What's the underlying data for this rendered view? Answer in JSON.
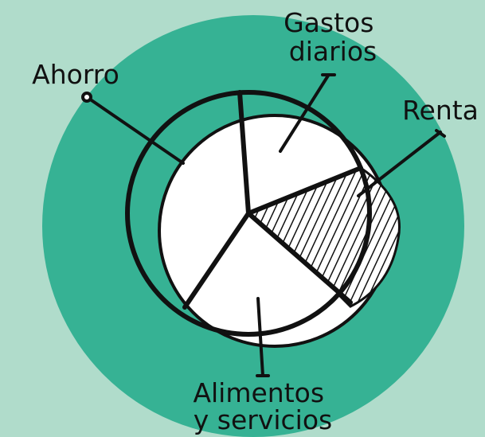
{
  "slices": [
    {
      "label": [
        "Ahorro"
      ]
    },
    {
      "label": [
        "Gastos",
        "diarios"
      ]
    },
    {
      "label": [
        "Renta"
      ]
    },
    {
      "label": [
        "Alimentos",
        "y servicios"
      ]
    }
  ]
}
